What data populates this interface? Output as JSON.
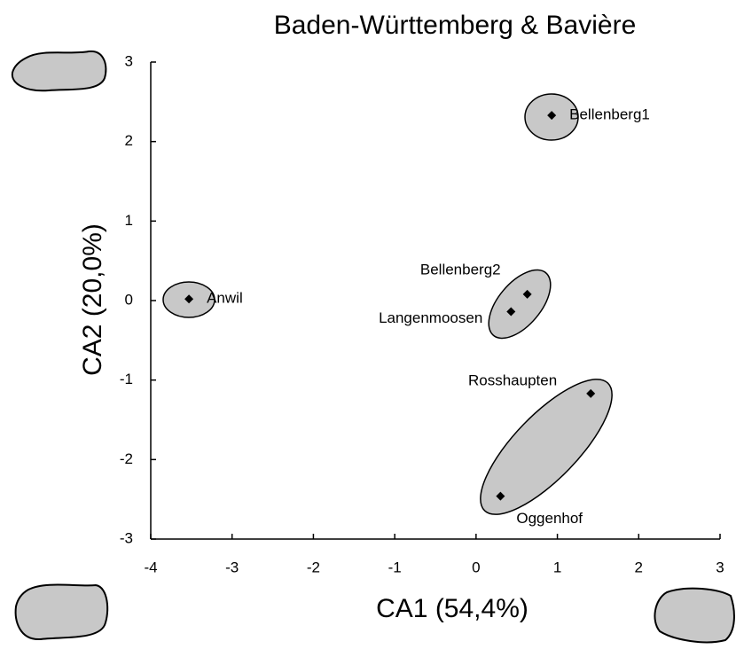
{
  "chart_data": {
    "type": "scatter",
    "title": "Baden-Württemberg & Bavière",
    "x_label": "CA1 (54,4%)",
    "y_label": "CA2 (20,0%)",
    "xlim": [
      -4,
      3
    ],
    "xticks": [
      -4,
      -3,
      -2,
      -1,
      0,
      1,
      2,
      3
    ],
    "ylim": [
      -3,
      3
    ],
    "yticks": [
      -3,
      -2,
      -1,
      0,
      1,
      2,
      3
    ],
    "color": "#000000",
    "points": [
      {
        "label": "Anwil",
        "x": -3.53,
        "y": 0.02
      },
      {
        "label": "Bellenberg1",
        "x": 0.93,
        "y": 2.33
      },
      {
        "label": "Bellenberg2",
        "x": 0.63,
        "y": 0.08
      },
      {
        "label": "Langenmoosen",
        "x": 0.43,
        "y": -0.14
      },
      {
        "label": "Rosshaupten",
        "x": 1.41,
        "y": -1.17
      },
      {
        "label": "Oggenhof",
        "x": 0.3,
        "y": -2.46
      }
    ]
  }
}
